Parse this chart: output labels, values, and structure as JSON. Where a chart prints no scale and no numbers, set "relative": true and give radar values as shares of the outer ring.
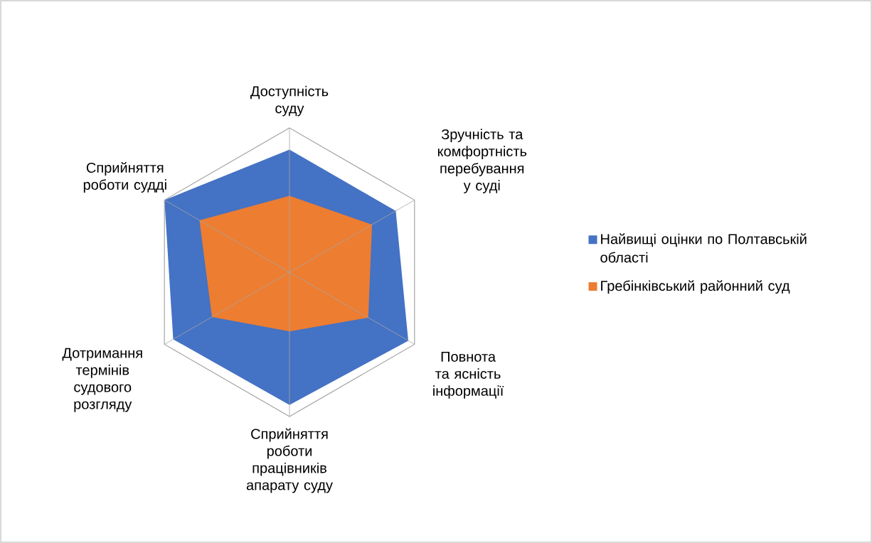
{
  "chart_data": {
    "type": "radar",
    "relative": true,
    "grid": true,
    "legend": "right",
    "categories": [
      "Доступність суду",
      "Зручність та комфортність перебування у суді",
      "Повнота та ясність інформації",
      "Сприйняття роботи працівників апарату суду",
      "Дотримання термінів судового розгляду",
      "Сприйняття роботи судді"
    ],
    "series": [
      {
        "name": "Найвищі оцінки по Полтавській області",
        "color": "#4472c4",
        "values": [
          0.85,
          0.85,
          0.95,
          0.92,
          0.93,
          1.0
        ]
      },
      {
        "name": "Гребінківський районний суд",
        "color": "#ed7d31",
        "values": [
          0.53,
          0.66,
          0.63,
          0.41,
          0.62,
          0.72
        ]
      }
    ]
  }
}
